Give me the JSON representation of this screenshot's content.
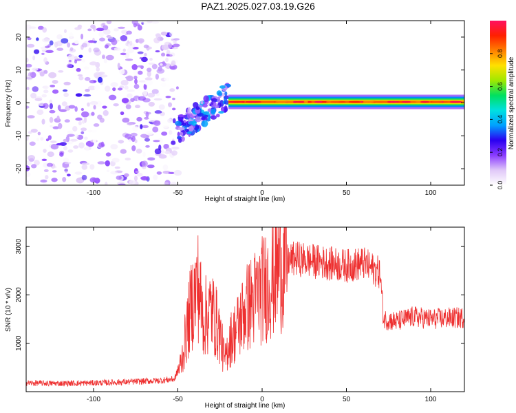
{
  "title": "PAZ1.2025.027.03.19.G26",
  "chart_data": [
    {
      "type": "heatmap",
      "xlabel": "Height of straight line (km)",
      "ylabel": "Frequency (Hz)",
      "xlim": [
        -140,
        120
      ],
      "ylim": [
        -25,
        25
      ],
      "xticks": [
        -100,
        -50,
        0,
        50,
        100
      ],
      "yticks": [
        -20,
        -10,
        0,
        10,
        20
      ],
      "grid": false,
      "colorbar": {
        "label": "Normalized spectral amplitude",
        "range": [
          0,
          1
        ],
        "ticks": [
          "0.0",
          "0.2",
          "0.4",
          "0.6",
          "0.8"
        ],
        "tick_values": [
          0.0,
          0.2,
          0.4,
          0.6,
          0.8
        ],
        "colormap": [
          "#ffffff",
          "#e0c8f8",
          "#8a3cff",
          "#2a00f0",
          "#00a0ff",
          "#00e0e0",
          "#00e060",
          "#a0e800",
          "#ffe000",
          "#ff8000",
          "#ff2000",
          "#ff1060"
        ]
      },
      "features": [
        {
          "region": "noise",
          "x_range": [
            -140,
            -50
          ],
          "freq_range": [
            -25,
            25
          ],
          "amplitude": [
            0.0,
            0.15
          ]
        },
        {
          "region": "transition",
          "x_range": [
            -50,
            -20
          ],
          "freq_range": [
            -12,
            5
          ],
          "amplitude": [
            0.1,
            0.4
          ]
        },
        {
          "region": "carrier_line",
          "x_range": [
            -20,
            120
          ],
          "freq_center": 0.3,
          "amplitude": [
            0.4,
            1.0
          ]
        }
      ]
    },
    {
      "type": "line",
      "xlabel": "Height of straight line (km)",
      "ylabel": "SNR (10 * v/v)",
      "xlim": [
        -140,
        120
      ],
      "ylim": [
        0,
        3400
      ],
      "xticks": [
        -100,
        -50,
        0,
        50,
        100
      ],
      "yticks": [
        1000,
        2000,
        3000
      ],
      "grid": false,
      "color": "#ee3030",
      "series": [
        {
          "x": [
            -140,
            -120,
            -100,
            -80,
            -60,
            -52,
            -48,
            -45,
            -42,
            -38,
            -35,
            -30,
            -25,
            -22,
            -20,
            -15,
            -10,
            -5,
            0,
            5,
            10,
            15,
            20,
            30,
            40,
            50,
            60,
            65,
            70,
            72,
            80,
            90,
            100,
            110,
            120
          ],
          "values": [
            180,
            170,
            180,
            200,
            230,
            260,
            600,
            1200,
            1800,
            2200,
            1500,
            1700,
            1200,
            600,
            1000,
            1300,
            1700,
            1900,
            2100,
            2300,
            2600,
            2700,
            2750,
            2700,
            2650,
            2600,
            2650,
            2550,
            2450,
            1500,
            1450,
            1550,
            1500,
            1520,
            1530
          ]
        }
      ]
    }
  ]
}
